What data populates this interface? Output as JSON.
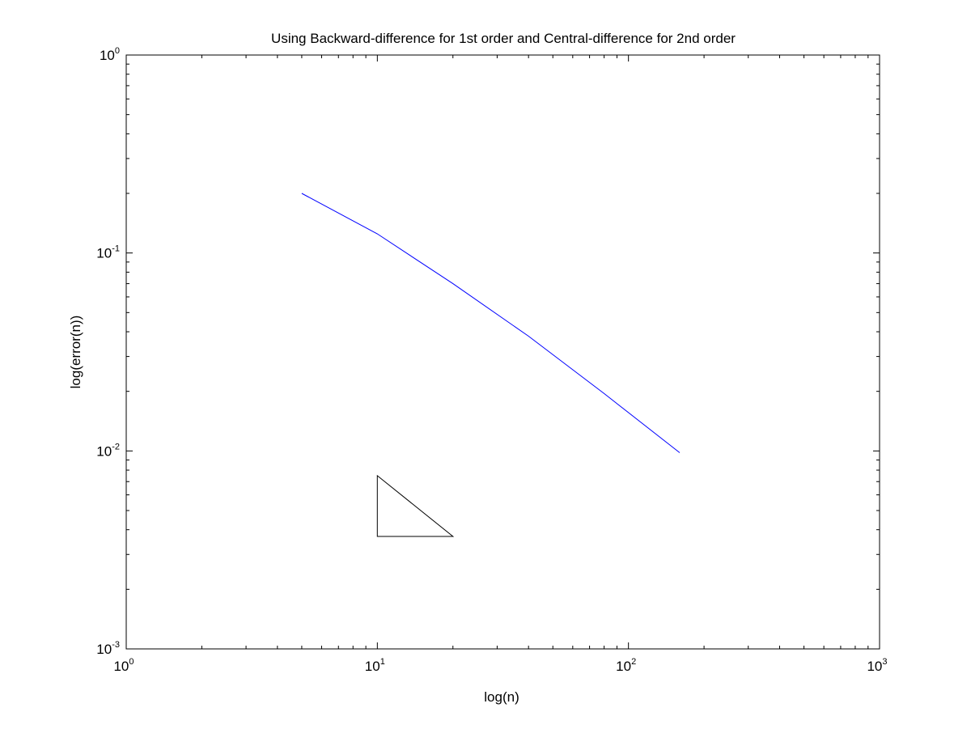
{
  "chart_data": {
    "type": "line",
    "title": "Using Backward-difference for 1st order and Central-difference for 2nd order",
    "xlabel": "log(n)",
    "ylabel": "log(error(n))",
    "xscale": "log",
    "yscale": "log",
    "xlim": [
      1,
      1000
    ],
    "ylim": [
      0.001,
      1
    ],
    "grid": false,
    "legend": "none",
    "x_ticks": [
      {
        "base": "10",
        "exp": "0",
        "value": 1
      },
      {
        "base": "10",
        "exp": "1",
        "value": 10
      },
      {
        "base": "10",
        "exp": "2",
        "value": 100
      },
      {
        "base": "10",
        "exp": "3",
        "value": 1000
      }
    ],
    "y_ticks": [
      {
        "base": "10",
        "exp": "-3",
        "value": 0.001
      },
      {
        "base": "10",
        "exp": "-2",
        "value": 0.01
      },
      {
        "base": "10",
        "exp": "-1",
        "value": 0.1
      },
      {
        "base": "10",
        "exp": "0",
        "value": 1
      }
    ],
    "series": [
      {
        "color": "#0000ff",
        "x": [
          5,
          10,
          20,
          40,
          80,
          160
        ],
        "y": [
          0.2,
          0.125,
          0.07,
          0.038,
          0.0195,
          0.0098
        ]
      }
    ],
    "annotations": [
      {
        "type": "slope-triangle",
        "color": "#000000",
        "points": [
          [
            10,
            0.0075
          ],
          [
            10,
            0.0037
          ],
          [
            20,
            0.0037
          ]
        ]
      }
    ]
  }
}
